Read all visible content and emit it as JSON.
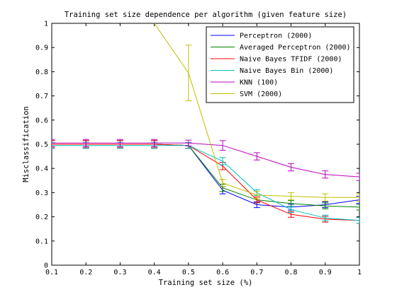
{
  "chart_data": {
    "type": "line",
    "title": "Training set size dependence per algorithm (given feature size)",
    "xlabel": "Training set size (%)",
    "ylabel": "Misclassification",
    "xlim": [
      0.1,
      1.0
    ],
    "ylim": [
      0,
      1
    ],
    "xticks": [
      "0.1",
      "0.2",
      "0.3",
      "0.4",
      "0.5",
      "0.6",
      "0.7",
      "0.8",
      "0.9",
      "1"
    ],
    "yticks": [
      "0",
      "0.1",
      "0.2",
      "0.3",
      "0.4",
      "0.5",
      "0.6",
      "0.7",
      "0.8",
      "0.9",
      "1"
    ],
    "grid": false,
    "legend_position": "top-right",
    "x": [
      0.1,
      0.2,
      0.3,
      0.4,
      0.5,
      0.6,
      0.7,
      0.8,
      0.9,
      1.0
    ],
    "series": [
      {
        "name": "Perceptron (2000)",
        "color": "#0000ff",
        "values": [
          0.5,
          0.5,
          0.5,
          0.5,
          0.495,
          0.31,
          0.25,
          0.24,
          0.25,
          0.27
        ],
        "errors": [
          0.015,
          0.015,
          0.015,
          0.015,
          0.012,
          0.015,
          0.012,
          0.012,
          0.012,
          0.015
        ]
      },
      {
        "name": "Averaged Perceptron (2000)",
        "color": "#008000",
        "values": [
          0.5,
          0.5,
          0.5,
          0.5,
          0.495,
          0.32,
          0.27,
          0.255,
          0.245,
          0.24
        ],
        "errors": [
          0.015,
          0.015,
          0.015,
          0.015,
          0.012,
          0.015,
          0.012,
          0.012,
          0.012,
          0.012
        ]
      },
      {
        "name": "Naive Bayes TFIDF (2000)",
        "color": "#ff0000",
        "values": [
          0.5,
          0.5,
          0.5,
          0.5,
          0.495,
          0.41,
          0.27,
          0.21,
          0.19,
          0.185
        ],
        "errors": [
          0.015,
          0.015,
          0.015,
          0.015,
          0.012,
          0.015,
          0.012,
          0.012,
          0.012,
          0.012
        ]
      },
      {
        "name": "Naive Bayes Bin (2000)",
        "color": "#00bfbf",
        "values": [
          0.495,
          0.495,
          0.495,
          0.495,
          0.495,
          0.43,
          0.3,
          0.23,
          0.195,
          0.185
        ],
        "errors": [
          0.012,
          0.012,
          0.012,
          0.012,
          0.012,
          0.015,
          0.012,
          0.012,
          0.012,
          0.012
        ]
      },
      {
        "name": "KNN (100)",
        "color": "#bf00bf",
        "values": [
          0.505,
          0.505,
          0.505,
          0.505,
          0.505,
          0.495,
          0.45,
          0.405,
          0.375,
          0.365
        ],
        "errors": [
          0.015,
          0.015,
          0.015,
          0.015,
          0.012,
          0.02,
          0.015,
          0.015,
          0.015,
          0.015
        ]
      },
      {
        "name": "SVM (2000)",
        "color": "#bfbf00",
        "values": [
          null,
          null,
          null,
          1.0,
          0.795,
          0.34,
          0.29,
          0.285,
          0.28,
          0.28
        ],
        "errors": [
          null,
          null,
          null,
          0,
          0.115,
          0.015,
          0.015,
          0.015,
          0.015,
          0.015
        ]
      }
    ]
  }
}
